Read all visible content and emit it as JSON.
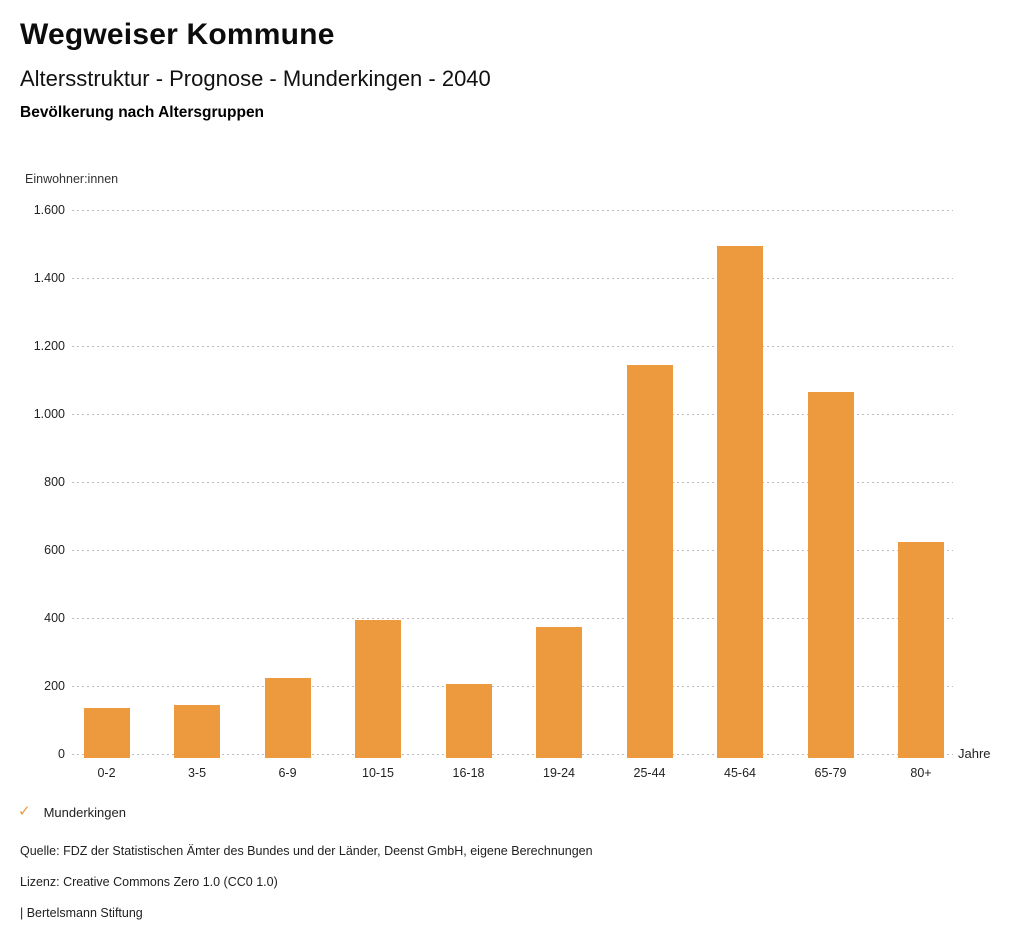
{
  "header": {
    "title": "Wegweiser Kommune",
    "subtitle": "Altersstruktur - Prognose - Munderkingen - 2040",
    "caption": "Bevölkerung nach Altersgruppen"
  },
  "chart_data": {
    "type": "bar",
    "title": "Bevölkerung nach Altersgruppen",
    "series_name": "Munderkingen",
    "categories": [
      "0-2",
      "3-5",
      "6-9",
      "10-15",
      "16-18",
      "19-24",
      "25-44",
      "45-64",
      "65-79",
      "80+"
    ],
    "values": [
      135,
      145,
      225,
      395,
      205,
      375,
      1145,
      1495,
      1065,
      625
    ],
    "xlabel": "Jahre",
    "ylabel": "Einwohner:innen",
    "ylim": [
      0,
      1600
    ],
    "ytick_interval": 200,
    "ytick_labels": [
      "0",
      "200",
      "400",
      "600",
      "800",
      "1.000",
      "1.200",
      "1.400",
      "1.600"
    ],
    "grid": "horizontal-dotted",
    "legend_position": "bottom-left",
    "bar_color": "#EC9A3D"
  },
  "legend": {
    "check_icon": "✓",
    "label": "Munderkingen"
  },
  "footer": {
    "source": "Quelle: FDZ der Statistischen Ämter des Bundes und der Länder, Deenst GmbH, eigene Berechnungen",
    "license": "Lizenz: Creative Commons Zero 1.0 (CC0 1.0)",
    "attribution": "| Bertelsmann Stiftung"
  },
  "colors": {
    "accent": "#EC9A3D",
    "grid": "#bdbdbd",
    "text": "#1a1a1a",
    "background": "#ffffff"
  }
}
